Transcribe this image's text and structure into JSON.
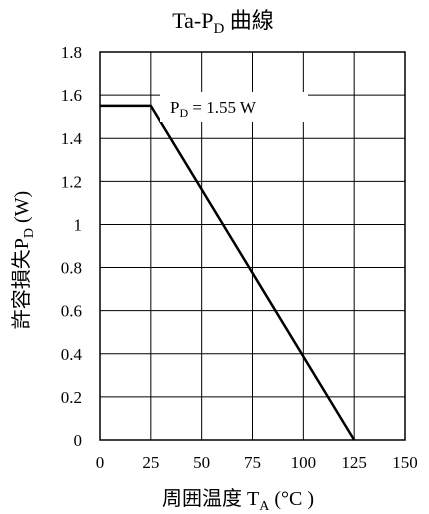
{
  "chart_data": {
    "type": "line",
    "title": {
      "main": "Ta-P",
      "sub": "D",
      "suffix": " 曲線"
    },
    "xlabel": {
      "main": "周囲温度 T",
      "sub": "A",
      "suffix": " (°C )"
    },
    "ylabel": {
      "main": "許容損失P",
      "sub": "D",
      "suffix": " (W)"
    },
    "xlim": [
      0,
      150
    ],
    "ylim": [
      0,
      1.8
    ],
    "x_ticks": [
      "0",
      "25",
      "50",
      "75",
      "100",
      "125",
      "150"
    ],
    "y_ticks": [
      "0",
      "0.2",
      "0.4",
      "0.6",
      "0.8",
      "1",
      "1.2",
      "1.4",
      "1.6",
      "1.8"
    ],
    "grid": true,
    "series": [
      {
        "x": [
          0,
          25,
          125
        ],
        "y": [
          1.55,
          1.55,
          0
        ]
      }
    ],
    "annotation": {
      "main": "P",
      "sub": "D",
      "suffix": " = 1.55 W"
    }
  }
}
